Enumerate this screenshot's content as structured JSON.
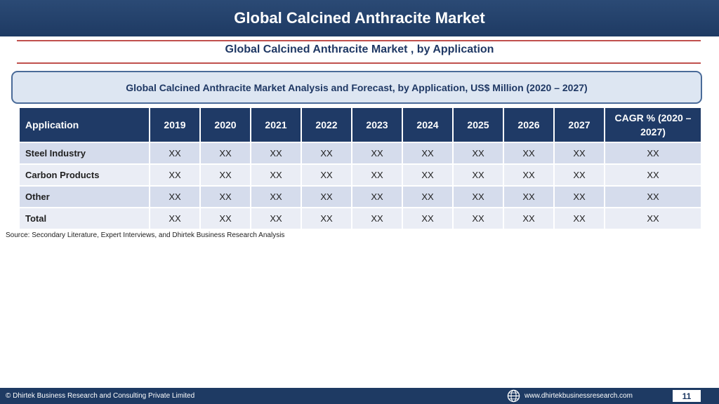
{
  "header": {
    "title": "Global Calcined Anthracite Market"
  },
  "subtitle": "Global Calcined Anthracite Market , by Application",
  "callout": "Global Calcined Anthracite Market  Analysis and Forecast, by Application, US$ Million (2020 – 2027)",
  "table": {
    "columns": [
      "Application",
      "2019",
      "2020",
      "2021",
      "2022",
      "2023",
      "2024",
      "2025",
      "2026",
      "2027",
      "CAGR % (2020 – 2027)"
    ],
    "rows": [
      {
        "label": "Steel Industry",
        "values": [
          "XX",
          "XX",
          "XX",
          "XX",
          "XX",
          "XX",
          "XX",
          "XX",
          "XX",
          "XX"
        ]
      },
      {
        "label": "Carbon Products",
        "values": [
          "XX",
          "XX",
          "XX",
          "XX",
          "XX",
          "XX",
          "XX",
          "XX",
          "XX",
          "XX"
        ]
      },
      {
        "label": "Other",
        "values": [
          "XX",
          "XX",
          "XX",
          "XX",
          "XX",
          "XX",
          "XX",
          "XX",
          "XX",
          "XX"
        ]
      },
      {
        "label": "Total",
        "values": [
          "XX",
          "XX",
          "XX",
          "XX",
          "XX",
          "XX",
          "XX",
          "XX",
          "XX",
          "XX"
        ]
      }
    ]
  },
  "source": "Source: Secondary Literature, Expert Interviews, and Dhirtek Business Research Analysis",
  "footer": {
    "copyright": "© Dhirtek Business Research and Consulting Private Limited",
    "globe_icon": "globe-icon",
    "url": "www.dhirtekbusinessresearch.com",
    "page_number": "11"
  }
}
